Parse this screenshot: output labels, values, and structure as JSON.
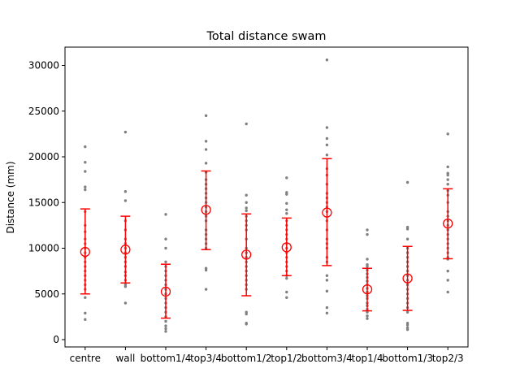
{
  "chart_data": {
    "type": "scatter",
    "title": "Total distance swam",
    "xlabel": "",
    "ylabel": "Distance (mm)",
    "ylim": [
      -800,
      32000
    ],
    "yticks": [
      0,
      5000,
      10000,
      15000,
      20000,
      25000,
      30000
    ],
    "grid": false,
    "categories": [
      "centre",
      "wall",
      "bottom1/4",
      "top3/4",
      "bottom1/2",
      "top1/2",
      "bottom3/4",
      "top1/4",
      "bottom1/3",
      "top2/3"
    ],
    "summary": {
      "mean": [
        9600,
        9850,
        5250,
        14200,
        9300,
        10100,
        13900,
        5500,
        6700,
        12700
      ],
      "lower": [
        5000,
        6200,
        2350,
        9850,
        4800,
        7000,
        8100,
        3150,
        3200,
        8850
      ],
      "upper": [
        14300,
        13500,
        8250,
        18450,
        13750,
        13300,
        19800,
        7800,
        10200,
        16500
      ]
    },
    "points": [
      [
        21100,
        19400,
        18400,
        16700,
        16400,
        14000,
        12500,
        11800,
        11000,
        10500,
        10000,
        9500,
        9000,
        8500,
        8000,
        7500,
        7000,
        6500,
        6000,
        5500,
        4600,
        2900,
        2200
      ],
      [
        22700,
        16200,
        15200,
        13000,
        12000,
        11000,
        10500,
        10000,
        9500,
        9000,
        8500,
        8000,
        7400,
        7000,
        6500,
        6000,
        5800,
        4000
      ],
      [
        13700,
        11000,
        10000,
        8500,
        8000,
        7500,
        7000,
        6500,
        6000,
        5500,
        5000,
        4500,
        4000,
        3500,
        3000,
        2500,
        2000,
        1500,
        1200,
        900
      ],
      [
        24500,
        21700,
        20800,
        19300,
        18300,
        17500,
        17000,
        16500,
        16000,
        15500,
        15000,
        14500,
        14000,
        13500,
        13000,
        12000,
        11500,
        11000,
        10500,
        10000,
        7800,
        7600,
        5500
      ],
      [
        23600,
        15800,
        15000,
        14400,
        14100,
        13500,
        13000,
        12500,
        12000,
        11000,
        10000,
        9500,
        9000,
        8500,
        8000,
        7500,
        7000,
        6500,
        6000,
        5500,
        3000,
        2800,
        1800,
        1700
      ],
      [
        17700,
        16100,
        15900,
        14900,
        14200,
        13800,
        13000,
        12500,
        12000,
        11500,
        11000,
        10500,
        10000,
        9500,
        9000,
        8500,
        8000,
        7500,
        7000,
        6700,
        5200,
        4600
      ],
      [
        30600,
        23200,
        22000,
        21300,
        20200,
        18700,
        18000,
        17000,
        16000,
        15500,
        15000,
        14500,
        14000,
        13000,
        12000,
        11000,
        10500,
        10000,
        9000,
        8500,
        7000,
        6500,
        5300,
        3500,
        2900
      ],
      [
        12000,
        11500,
        8800,
        8200,
        8000,
        7600,
        7200,
        6800,
        6400,
        6000,
        5600,
        5200,
        4800,
        4500,
        4000,
        3700,
        3300,
        3000,
        2600,
        2300
      ],
      [
        17200,
        12300,
        12100,
        11000,
        10000,
        9500,
        9000,
        8500,
        8000,
        7500,
        7000,
        6500,
        6000,
        5500,
        5000,
        4500,
        4000,
        3500,
        3000,
        1800,
        1600,
        1300,
        1100
      ],
      [
        22500,
        18900,
        18200,
        18000,
        17500,
        17000,
        16300,
        15800,
        15000,
        14000,
        13500,
        13000,
        12500,
        12000,
        11500,
        11000,
        10500,
        10000,
        9500,
        9000,
        8800,
        7500,
        6500,
        5200
      ]
    ],
    "colors": {
      "points": "#808080",
      "summary": "#ff0000",
      "axes": "#000000",
      "background": "#ffffff"
    }
  }
}
